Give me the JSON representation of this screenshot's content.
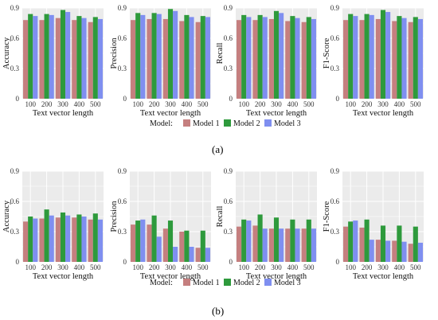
{
  "panel_labels": [
    "(a)",
    "(b)"
  ],
  "legend": {
    "title": "Model:",
    "entries": [
      {
        "name": "Model 1",
        "color": "#c57f7f"
      },
      {
        "name": "Model 2",
        "color": "#2e9a3c"
      },
      {
        "name": "Model 3",
        "color": "#7f8ff0"
      }
    ]
  },
  "colors": {
    "panel_bg": "#ebebeb",
    "grid": "#ffffff"
  },
  "chart_data": [
    {
      "type": "bar",
      "group": "(a)",
      "ylabel": "Accuracy",
      "xlabel": "Text vector length",
      "categories": [
        "100",
        "200",
        "300",
        "400",
        "500"
      ],
      "ylim": [
        0,
        0.9
      ],
      "yticks": [
        "0",
        "0.3",
        "0.6",
        "0.9"
      ],
      "series": [
        {
          "name": "Model 1",
          "values": [
            0.78,
            0.78,
            0.8,
            0.78,
            0.76
          ]
        },
        {
          "name": "Model 2",
          "values": [
            0.84,
            0.84,
            0.88,
            0.82,
            0.81
          ]
        },
        {
          "name": "Model 3",
          "values": [
            0.82,
            0.83,
            0.86,
            0.8,
            0.79
          ]
        }
      ]
    },
    {
      "type": "bar",
      "group": "(a)",
      "ylabel": "Precision",
      "xlabel": "Text vector length",
      "categories": [
        "100",
        "200",
        "300",
        "400",
        "500"
      ],
      "ylim": [
        0,
        0.9
      ],
      "yticks": [
        "0",
        "0.3",
        "0.6",
        "0.9"
      ],
      "series": [
        {
          "name": "Model 1",
          "values": [
            0.78,
            0.79,
            0.79,
            0.77,
            0.76
          ]
        },
        {
          "name": "Model 2",
          "values": [
            0.85,
            0.85,
            0.89,
            0.83,
            0.82
          ]
        },
        {
          "name": "Model 3",
          "values": [
            0.83,
            0.84,
            0.87,
            0.81,
            0.81
          ]
        }
      ]
    },
    {
      "type": "bar",
      "group": "(a)",
      "ylabel": "Recall",
      "xlabel": "Text vector length",
      "categories": [
        "100",
        "200",
        "300",
        "400",
        "500"
      ],
      "ylim": [
        0,
        0.9
      ],
      "yticks": [
        "0",
        "0.3",
        "0.6",
        "0.9"
      ],
      "series": [
        {
          "name": "Model 1",
          "values": [
            0.78,
            0.78,
            0.79,
            0.77,
            0.76
          ]
        },
        {
          "name": "Model 2",
          "values": [
            0.83,
            0.83,
            0.87,
            0.82,
            0.81
          ]
        },
        {
          "name": "Model 3",
          "values": [
            0.81,
            0.81,
            0.85,
            0.8,
            0.79
          ]
        }
      ]
    },
    {
      "type": "bar",
      "group": "(a)",
      "ylabel": "F1-Score",
      "xlabel": "Text vector length",
      "categories": [
        "100",
        "200",
        "300",
        "400",
        "500"
      ],
      "ylim": [
        0,
        0.9
      ],
      "yticks": [
        "0",
        "0.3",
        "0.6",
        "0.9"
      ],
      "series": [
        {
          "name": "Model 1",
          "values": [
            0.78,
            0.78,
            0.79,
            0.77,
            0.76
          ]
        },
        {
          "name": "Model 2",
          "values": [
            0.84,
            0.84,
            0.88,
            0.82,
            0.81
          ]
        },
        {
          "name": "Model 3",
          "values": [
            0.82,
            0.83,
            0.86,
            0.8,
            0.79
          ]
        }
      ]
    },
    {
      "type": "bar",
      "group": "(b)",
      "ylabel": "Accuracy",
      "xlabel": "Text vector length",
      "categories": [
        "100",
        "200",
        "300",
        "400",
        "500"
      ],
      "ylim": [
        0,
        0.9
      ],
      "yticks": [
        "0",
        "0.3",
        "0.6",
        "0.9"
      ],
      "series": [
        {
          "name": "Model 1",
          "values": [
            0.4,
            0.43,
            0.44,
            0.44,
            0.42
          ]
        },
        {
          "name": "Model 2",
          "values": [
            0.45,
            0.52,
            0.49,
            0.47,
            0.48
          ]
        },
        {
          "name": "Model 3",
          "values": [
            0.43,
            0.46,
            0.46,
            0.45,
            0.42
          ]
        }
      ]
    },
    {
      "type": "bar",
      "group": "(b)",
      "ylabel": "Precision",
      "xlabel": "Text vector length",
      "categories": [
        "100",
        "200",
        "300",
        "400",
        "500"
      ],
      "ylim": [
        0,
        0.9
      ],
      "yticks": [
        "0",
        "0.3",
        "0.6",
        "0.9"
      ],
      "series": [
        {
          "name": "Model 1",
          "values": [
            0.37,
            0.37,
            0.33,
            0.3,
            0.14
          ]
        },
        {
          "name": "Model 2",
          "values": [
            0.41,
            0.46,
            0.41,
            0.31,
            0.31
          ]
        },
        {
          "name": "Model 3",
          "values": [
            0.42,
            0.25,
            0.15,
            0.15,
            0.14
          ]
        }
      ]
    },
    {
      "type": "bar",
      "group": "(b)",
      "ylabel": "Recall",
      "xlabel": "Text vector length",
      "categories": [
        "100",
        "200",
        "300",
        "400",
        "500"
      ],
      "ylim": [
        0,
        0.9
      ],
      "yticks": [
        "0",
        "0.3",
        "0.6",
        "0.9"
      ],
      "series": [
        {
          "name": "Model 1",
          "values": [
            0.35,
            0.36,
            0.33,
            0.33,
            0.33
          ]
        },
        {
          "name": "Model 2",
          "values": [
            0.42,
            0.47,
            0.44,
            0.42,
            0.42
          ]
        },
        {
          "name": "Model 3",
          "values": [
            0.41,
            0.33,
            0.33,
            0.33,
            0.33
          ]
        }
      ]
    },
    {
      "type": "bar",
      "group": "(b)",
      "ylabel": "F1-Score",
      "xlabel": "Text vector length",
      "categories": [
        "100",
        "200",
        "300",
        "400",
        "500"
      ],
      "ylim": [
        0,
        0.9
      ],
      "yticks": [
        "0",
        "0.3",
        "0.6",
        "0.9"
      ],
      "series": [
        {
          "name": "Model 1",
          "values": [
            0.35,
            0.34,
            0.22,
            0.21,
            0.18
          ]
        },
        {
          "name": "Model 2",
          "values": [
            0.4,
            0.42,
            0.36,
            0.36,
            0.35
          ]
        },
        {
          "name": "Model 3",
          "values": [
            0.41,
            0.22,
            0.21,
            0.2,
            0.19
          ]
        }
      ]
    }
  ]
}
